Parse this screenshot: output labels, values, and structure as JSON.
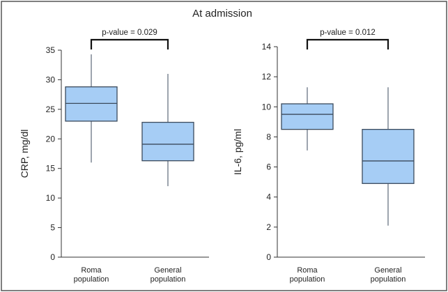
{
  "figure": {
    "title": "At admission",
    "colors": {
      "box_fill": "#a6cdf5",
      "box_stroke": "#3b4a5c",
      "axis": "#333333",
      "frame": "#555555"
    }
  },
  "chart_data": [
    {
      "type": "box",
      "ylabel": "CRP, mg/dl",
      "ylim": [
        0,
        35
      ],
      "yticks": [
        0,
        5,
        10,
        15,
        20,
        25,
        30,
        35
      ],
      "categories": [
        "Roma population",
        "General population"
      ],
      "category_lines": [
        [
          "Roma",
          "population"
        ],
        [
          "General",
          "population"
        ]
      ],
      "boxes": [
        {
          "name": "Roma population",
          "min": 16,
          "q1": 23,
          "median": 26,
          "q3": 28.8,
          "max": 34.3
        },
        {
          "name": "General population",
          "min": 12,
          "q1": 16.3,
          "median": 19.1,
          "q3": 22.8,
          "max": 31
        }
      ],
      "annotation": "p-value = 0.029"
    },
    {
      "type": "box",
      "ylabel": "IL-6, pg/ml",
      "ylim": [
        0,
        14
      ],
      "yticks": [
        0,
        2,
        4,
        6,
        8,
        10,
        12,
        14
      ],
      "categories": [
        "Roma population",
        "General population"
      ],
      "category_lines": [
        [
          "Roma",
          "population"
        ],
        [
          "General",
          "population"
        ]
      ],
      "boxes": [
        {
          "name": "Roma population",
          "min": 7.1,
          "q1": 8.5,
          "median": 9.5,
          "q3": 10.2,
          "max": 11.3
        },
        {
          "name": "General population",
          "min": 2.1,
          "q1": 4.9,
          "median": 6.4,
          "q3": 8.5,
          "max": 11.3
        }
      ],
      "annotation": "p-value = 0.012"
    }
  ]
}
